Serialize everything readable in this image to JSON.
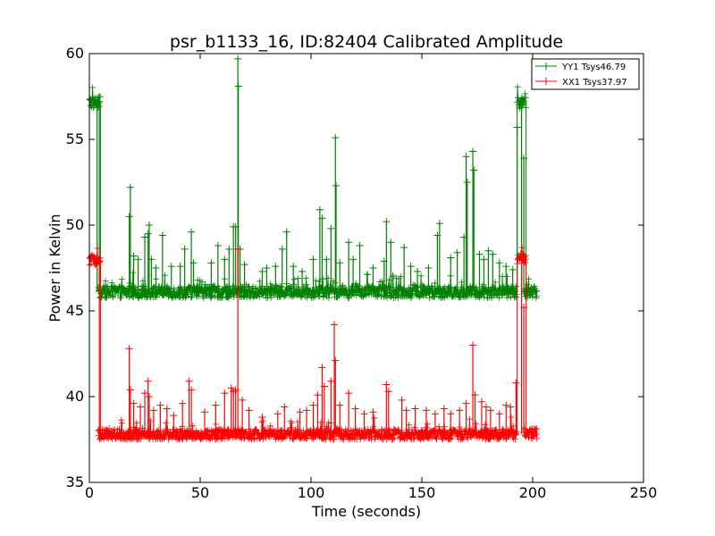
{
  "chart_data": {
    "type": "line",
    "title": "psr_b1133_16, ID:82404 Calibrated Amplitude",
    "xlabel": "Time (seconds)",
    "ylabel": "Power in Kelvin",
    "xlim": [
      0,
      250
    ],
    "ylim": [
      35,
      60
    ],
    "xticks": [
      "0",
      "50",
      "100",
      "150",
      "200",
      "250"
    ],
    "yticks": [
      "35",
      "40",
      "45",
      "50",
      "55",
      "60"
    ],
    "grid": false,
    "legend_position": "top-right",
    "marker": "plus",
    "series": [
      {
        "name": "YY1 Tsys46.79",
        "color": "#008000",
        "baseline": 46.1,
        "noise": 0.35,
        "segments": [
          {
            "x": [
              0,
              5
            ],
            "y": 57.15
          },
          {
            "x": [
              4,
              193
            ],
            "y": 46.1
          },
          {
            "x": [
              193,
              197
            ],
            "y": 57.15
          },
          {
            "x": [
              196,
              202
            ],
            "y": 46.1
          }
        ],
        "spikes": [
          {
            "x": 3.5,
            "y": 57.1
          },
          {
            "x": 4.5,
            "y": 57.2
          },
          {
            "x": 18.5,
            "y": 52.2
          },
          {
            "x": 18,
            "y": 50.5
          },
          {
            "x": 20,
            "y": 48.2
          },
          {
            "x": 22,
            "y": 48.0
          },
          {
            "x": 25,
            "y": 49.3
          },
          {
            "x": 26.5,
            "y": 49.5
          },
          {
            "x": 27,
            "y": 50.0
          },
          {
            "x": 28,
            "y": 48.0
          },
          {
            "x": 30,
            "y": 47.5
          },
          {
            "x": 33,
            "y": 49.4
          },
          {
            "x": 37,
            "y": 47.6
          },
          {
            "x": 41,
            "y": 47.6
          },
          {
            "x": 43,
            "y": 48.6
          },
          {
            "x": 46,
            "y": 49.6
          },
          {
            "x": 47,
            "y": 47.8
          },
          {
            "x": 55,
            "y": 47.8
          },
          {
            "x": 58,
            "y": 48.8
          },
          {
            "x": 61,
            "y": 48.0
          },
          {
            "x": 63,
            "y": 48.6
          },
          {
            "x": 65,
            "y": 49.9
          },
          {
            "x": 66,
            "y": 49.9
          },
          {
            "x": 67,
            "y": 59.7
          },
          {
            "x": 67.2,
            "y": 58.1
          },
          {
            "x": 68,
            "y": 48.6
          },
          {
            "x": 70,
            "y": 47.7
          },
          {
            "x": 78,
            "y": 47.3
          },
          {
            "x": 80,
            "y": 47.5
          },
          {
            "x": 84,
            "y": 47.6
          },
          {
            "x": 87,
            "y": 48.6
          },
          {
            "x": 89,
            "y": 49.6
          },
          {
            "x": 92,
            "y": 47.6
          },
          {
            "x": 96,
            "y": 47.3
          },
          {
            "x": 101,
            "y": 48.0
          },
          {
            "x": 104,
            "y": 50.9
          },
          {
            "x": 105,
            "y": 50.4
          },
          {
            "x": 107,
            "y": 48.0
          },
          {
            "x": 109,
            "y": 49.8
          },
          {
            "x": 111,
            "y": 55.1
          },
          {
            "x": 111.3,
            "y": 52.3
          },
          {
            "x": 113,
            "y": 47.8
          },
          {
            "x": 117,
            "y": 49.0
          },
          {
            "x": 119,
            "y": 48.0
          },
          {
            "x": 122,
            "y": 48.8
          },
          {
            "x": 128,
            "y": 47.5
          },
          {
            "x": 133,
            "y": 47.9
          },
          {
            "x": 134,
            "y": 50.2
          },
          {
            "x": 136,
            "y": 49.0
          },
          {
            "x": 142,
            "y": 48.7
          },
          {
            "x": 145,
            "y": 47.6
          },
          {
            "x": 148,
            "y": 47.3
          },
          {
            "x": 153,
            "y": 47.5
          },
          {
            "x": 157,
            "y": 49.4
          },
          {
            "x": 158,
            "y": 50.1
          },
          {
            "x": 163,
            "y": 48.1
          },
          {
            "x": 166,
            "y": 48.4
          },
          {
            "x": 169,
            "y": 49.3
          },
          {
            "x": 170,
            "y": 54.0
          },
          {
            "x": 170.5,
            "y": 52.5
          },
          {
            "x": 173,
            "y": 54.3
          },
          {
            "x": 173.5,
            "y": 53.2
          },
          {
            "x": 176,
            "y": 48.3
          },
          {
            "x": 178,
            "y": 48.0
          },
          {
            "x": 180,
            "y": 48.5
          },
          {
            "x": 182,
            "y": 48.3
          },
          {
            "x": 185,
            "y": 47.8
          },
          {
            "x": 188,
            "y": 47.6
          },
          {
            "x": 191,
            "y": 47.4
          },
          {
            "x": 193,
            "y": 55.7
          },
          {
            "x": 195,
            "y": 57.2
          },
          {
            "x": 196,
            "y": 53.9
          }
        ]
      },
      {
        "name": "XX1 Tsys37.97",
        "color": "#ff0000",
        "baseline": 37.8,
        "noise": 0.3,
        "segments": [
          {
            "x": [
              0,
              5
            ],
            "y": 47.95
          },
          {
            "x": [
              4,
              193
            ],
            "y": 37.8
          },
          {
            "x": [
              193,
              197
            ],
            "y": 48.05
          },
          {
            "x": [
              196,
              202
            ],
            "y": 37.85
          }
        ],
        "spikes": [
          {
            "x": 4.5,
            "y": 47.9
          },
          {
            "x": 18,
            "y": 42.8
          },
          {
            "x": 18.5,
            "y": 40.4
          },
          {
            "x": 20,
            "y": 39.6
          },
          {
            "x": 23,
            "y": 39.4
          },
          {
            "x": 25,
            "y": 40.2
          },
          {
            "x": 26.5,
            "y": 40.9
          },
          {
            "x": 27,
            "y": 40.0
          },
          {
            "x": 29,
            "y": 39.2
          },
          {
            "x": 32,
            "y": 39.5
          },
          {
            "x": 35,
            "y": 39.3
          },
          {
            "x": 38,
            "y": 38.9
          },
          {
            "x": 42,
            "y": 39.6
          },
          {
            "x": 45,
            "y": 40.9
          },
          {
            "x": 46,
            "y": 40.4
          },
          {
            "x": 52,
            "y": 39.1
          },
          {
            "x": 57,
            "y": 39.5
          },
          {
            "x": 61,
            "y": 40.2
          },
          {
            "x": 64,
            "y": 40.5
          },
          {
            "x": 65,
            "y": 40.3
          },
          {
            "x": 66,
            "y": 40.4
          },
          {
            "x": 67,
            "y": 48.6
          },
          {
            "x": 69,
            "y": 39.8
          },
          {
            "x": 72,
            "y": 39.2
          },
          {
            "x": 78,
            "y": 38.8
          },
          {
            "x": 85,
            "y": 39.0
          },
          {
            "x": 88,
            "y": 39.4
          },
          {
            "x": 95,
            "y": 39.1
          },
          {
            "x": 98,
            "y": 39.2
          },
          {
            "x": 101,
            "y": 39.5
          },
          {
            "x": 103,
            "y": 40.1
          },
          {
            "x": 105,
            "y": 41.7
          },
          {
            "x": 106,
            "y": 40.6
          },
          {
            "x": 109,
            "y": 40.9
          },
          {
            "x": 110.5,
            "y": 44.2
          },
          {
            "x": 111,
            "y": 42.1
          },
          {
            "x": 113,
            "y": 39.5
          },
          {
            "x": 117,
            "y": 40.2
          },
          {
            "x": 120,
            "y": 39.3
          },
          {
            "x": 124,
            "y": 39.0
          },
          {
            "x": 128,
            "y": 39.1
          },
          {
            "x": 134,
            "y": 40.7
          },
          {
            "x": 135,
            "y": 40.3
          },
          {
            "x": 141,
            "y": 39.8
          },
          {
            "x": 143,
            "y": 39.2
          },
          {
            "x": 147,
            "y": 39.3
          },
          {
            "x": 152,
            "y": 39.2
          },
          {
            "x": 156,
            "y": 39.0
          },
          {
            "x": 160,
            "y": 39.3
          },
          {
            "x": 163,
            "y": 39.0
          },
          {
            "x": 167,
            "y": 39.2
          },
          {
            "x": 170,
            "y": 39.6
          },
          {
            "x": 173,
            "y": 43.0
          },
          {
            "x": 174,
            "y": 40.1
          },
          {
            "x": 177,
            "y": 39.7
          },
          {
            "x": 179,
            "y": 39.4
          },
          {
            "x": 181,
            "y": 39.2
          },
          {
            "x": 185,
            "y": 39.0
          },
          {
            "x": 188,
            "y": 39.5
          },
          {
            "x": 190,
            "y": 39.4
          },
          {
            "x": 192.5,
            "y": 40.8
          },
          {
            "x": 195,
            "y": 48.1
          },
          {
            "x": 196,
            "y": 45.2
          }
        ]
      }
    ]
  }
}
